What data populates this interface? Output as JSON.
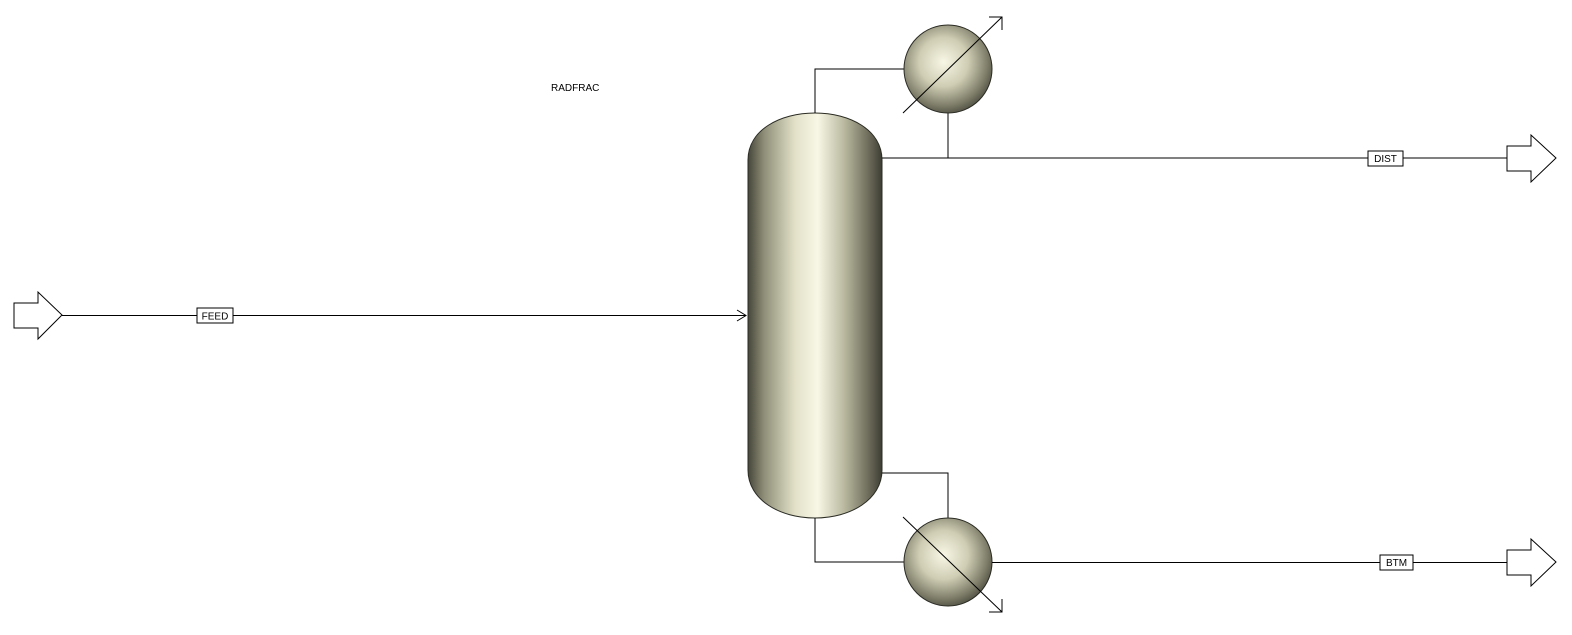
{
  "block": {
    "label": "RADFRAC",
    "type": "distillation-column"
  },
  "streams": [
    {
      "id": "feed",
      "label": "FEED",
      "direction": "inlet"
    },
    {
      "id": "dist",
      "label": "DIST",
      "direction": "outlet"
    },
    {
      "id": "btm",
      "label": "BTM",
      "direction": "outlet"
    }
  ],
  "equipment": {
    "condenser": "condenser-icon",
    "reboiler": "reboiler-icon"
  },
  "colors": {
    "line": "#000000",
    "vessel_light": "#f8f7e6",
    "vessel_dark": "#46463a",
    "background": "#ffffff"
  }
}
